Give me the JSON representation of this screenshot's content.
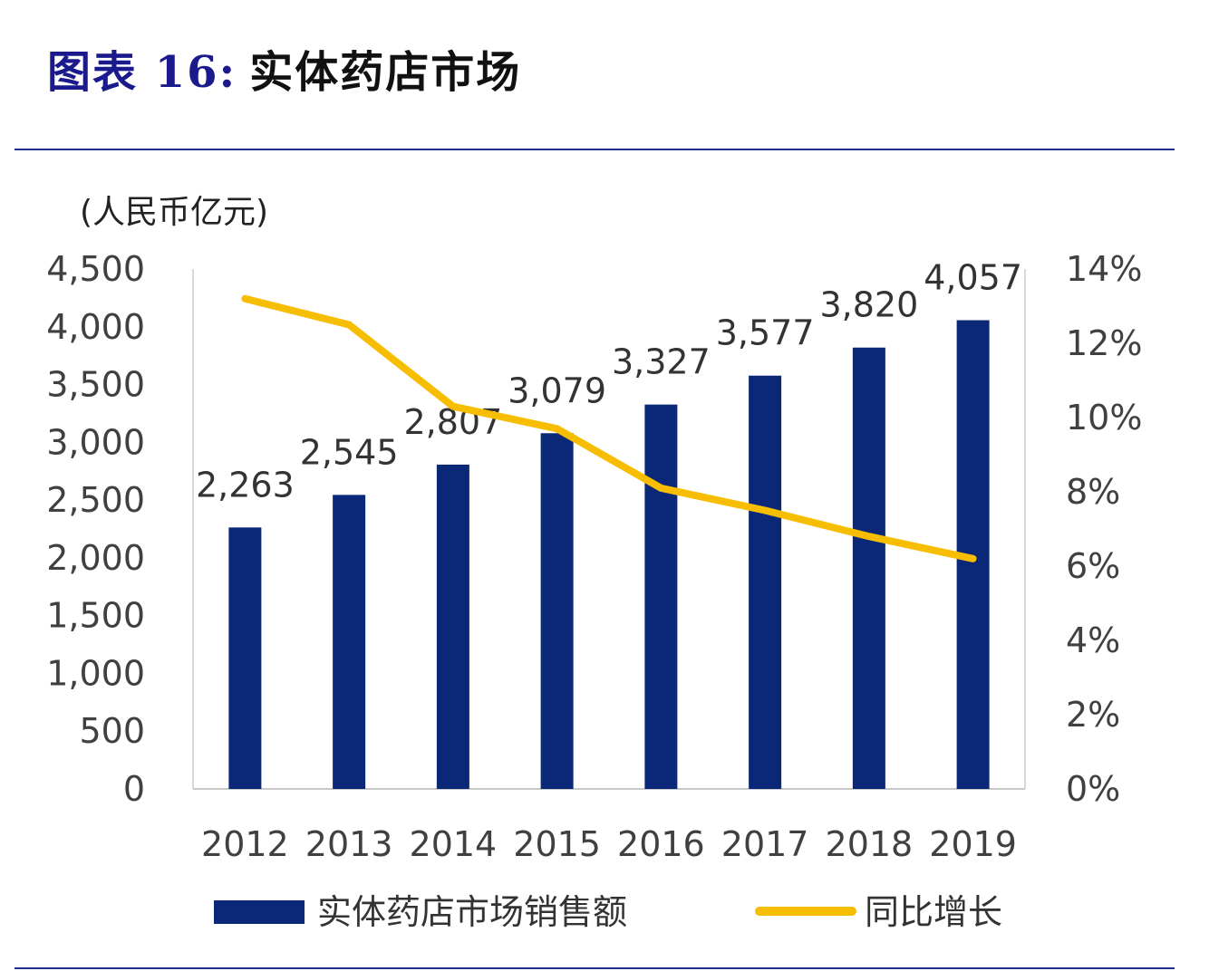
{
  "header": {
    "figure_label": "图表 16:",
    "title": "实体药店市场"
  },
  "chart_data": {
    "type": "bar+line",
    "unit_label": "(人民币亿元)",
    "categories": [
      "2012",
      "2013",
      "2014",
      "2015",
      "2016",
      "2017",
      "2018",
      "2019"
    ],
    "series": [
      {
        "name": "实体药店市场销售额",
        "type": "bar",
        "axis": "left",
        "color": "#0b2878",
        "values": [
          2263,
          2545,
          2807,
          3079,
          3327,
          3577,
          3820,
          4057
        ],
        "labels": [
          "2,263",
          "2,545",
          "2,807",
          "3,079",
          "3,327",
          "3,577",
          "3,820",
          "4,057"
        ]
      },
      {
        "name": "同比增长",
        "type": "line",
        "axis": "right",
        "color": "#f7bd00",
        "values": [
          13.2,
          12.5,
          10.3,
          9.7,
          8.1,
          7.5,
          6.8,
          6.2
        ]
      }
    ],
    "y_left": {
      "range": [
        0,
        4500
      ],
      "ticks": [
        "0",
        "500",
        "1,000",
        "1,500",
        "2,000",
        "2,500",
        "3,000",
        "3,500",
        "4,000",
        "4,500"
      ]
    },
    "y_right": {
      "range": [
        0,
        14
      ],
      "ticks": [
        "0%",
        "2%",
        "4%",
        "6%",
        "8%",
        "10%",
        "12%",
        "14%"
      ]
    },
    "grid": false,
    "legend": "bottom"
  }
}
